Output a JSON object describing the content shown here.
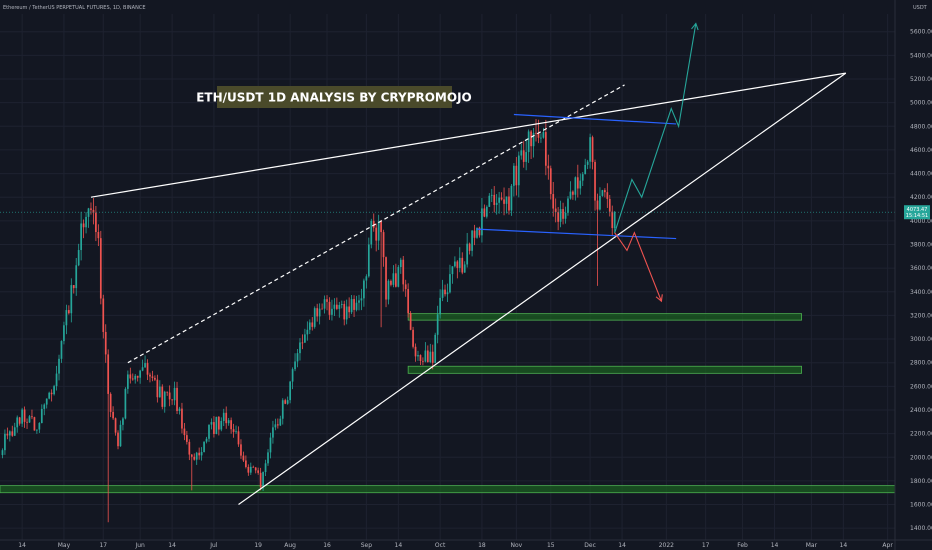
{
  "header": {
    "symbol_line": "Ethereum / TetherUS PERPETUAL FUTURES, 1D, BINANCE",
    "currency": "USDT"
  },
  "banner": {
    "title": "ETH/USDT 1D ANALYSIS BY CRYPROMOJO"
  },
  "price_tag": {
    "value": "4073.47",
    "countdown": "15:14:51"
  },
  "colors": {
    "background": "#131722",
    "grid": "#1e2230",
    "candle_up": "#26a69a",
    "candle_down": "#ef5350",
    "trendline": "#ffffff",
    "channel": "#2962ff",
    "zone_fill": "#1b5e20",
    "zone_border": "#4caf50",
    "projection_up": "#26a69a",
    "projection_down": "#ef5350",
    "banner_bg": "#4a4a2a",
    "price_tag_bg": "#26a69a"
  },
  "chart_data": {
    "type": "candlestick",
    "title": "ETH/USDT 1D ANALYSIS BY CRYPROMOJO",
    "xlabel": "",
    "ylabel": "",
    "grid": true,
    "ylim": [
      1300,
      5750
    ],
    "x_range": [
      "2021-04-05",
      "2022-04-04"
    ],
    "y_ticks": [
      1400,
      1600,
      1800,
      2000,
      2200,
      2400,
      2600,
      2800,
      3000,
      3200,
      3400,
      3600,
      3800,
      4000,
      4200,
      4400,
      4600,
      4800,
      5000,
      5200,
      5400,
      5600
    ],
    "x_ticks": [
      {
        "date": "2021-04-14",
        "label": "14"
      },
      {
        "date": "2021-05-01",
        "label": "May"
      },
      {
        "date": "2021-05-17",
        "label": "17"
      },
      {
        "date": "2021-06-01",
        "label": "Jun"
      },
      {
        "date": "2021-06-14",
        "label": "14"
      },
      {
        "date": "2021-07-01",
        "label": "Jul"
      },
      {
        "date": "2021-07-19",
        "label": "19"
      },
      {
        "date": "2021-08-01",
        "label": "Aug"
      },
      {
        "date": "2021-08-16",
        "label": "16"
      },
      {
        "date": "2021-09-01",
        "label": "Sep"
      },
      {
        "date": "2021-09-14",
        "label": "14"
      },
      {
        "date": "2021-10-01",
        "label": "Oct"
      },
      {
        "date": "2021-10-18",
        "label": "18"
      },
      {
        "date": "2021-11-01",
        "label": "Nov"
      },
      {
        "date": "2021-11-15",
        "label": "15"
      },
      {
        "date": "2021-12-01",
        "label": "Dec"
      },
      {
        "date": "2021-12-14",
        "label": "14"
      },
      {
        "date": "2022-01-01",
        "label": "2022"
      },
      {
        "date": "2022-01-17",
        "label": "17"
      },
      {
        "date": "2022-02-01",
        "label": "Feb"
      },
      {
        "date": "2022-02-14",
        "label": "14"
      },
      {
        "date": "2022-03-01",
        "label": "Mar"
      },
      {
        "date": "2022-03-14",
        "label": "14"
      },
      {
        "date": "2022-04-01",
        "label": "Apr"
      }
    ],
    "price_anchors": [
      {
        "date": "2021-04-06",
        "close": 2100
      },
      {
        "date": "2021-04-13",
        "close": 2350
      },
      {
        "date": "2021-04-20",
        "close": 2250
      },
      {
        "date": "2021-04-27",
        "close": 2650
      },
      {
        "date": "2021-05-04",
        "close": 3400
      },
      {
        "date": "2021-05-08",
        "close": 3900
      },
      {
        "date": "2021-05-11",
        "close": 4180
      },
      {
        "date": "2021-05-15",
        "close": 3750
      },
      {
        "date": "2021-05-19",
        "close": 2500
      },
      {
        "date": "2021-05-23",
        "close": 2100
      },
      {
        "date": "2021-05-27",
        "close": 2700
      },
      {
        "date": "2021-06-03",
        "close": 2750
      },
      {
        "date": "2021-06-10",
        "close": 2500
      },
      {
        "date": "2021-06-15",
        "close": 2550
      },
      {
        "date": "2021-06-22",
        "close": 1950
      },
      {
        "date": "2021-06-30",
        "close": 2250
      },
      {
        "date": "2021-07-07",
        "close": 2350
      },
      {
        "date": "2021-07-14",
        "close": 1950
      },
      {
        "date": "2021-07-20",
        "close": 1800
      },
      {
        "date": "2021-07-25",
        "close": 2200
      },
      {
        "date": "2021-08-01",
        "close": 2600
      },
      {
        "date": "2021-08-08",
        "close": 3100
      },
      {
        "date": "2021-08-15",
        "close": 3300
      },
      {
        "date": "2021-08-22",
        "close": 3250
      },
      {
        "date": "2021-08-29",
        "close": 3250
      },
      {
        "date": "2021-09-03",
        "close": 3900
      },
      {
        "date": "2021-09-07",
        "close": 3900
      },
      {
        "date": "2021-09-09",
        "close": 3400
      },
      {
        "date": "2021-09-15",
        "close": 3600
      },
      {
        "date": "2021-09-21",
        "close": 2900
      },
      {
        "date": "2021-09-28",
        "close": 2850
      },
      {
        "date": "2021-10-02",
        "close": 3400
      },
      {
        "date": "2021-10-08",
        "close": 3600
      },
      {
        "date": "2021-10-15",
        "close": 3850
      },
      {
        "date": "2021-10-20",
        "close": 4150
      },
      {
        "date": "2021-10-27",
        "close": 4050
      },
      {
        "date": "2021-11-02",
        "close": 4500
      },
      {
        "date": "2021-11-08",
        "close": 4750
      },
      {
        "date": "2021-11-12",
        "close": 4650
      },
      {
        "date": "2021-11-18",
        "close": 4000
      },
      {
        "date": "2021-11-24",
        "close": 4350
      },
      {
        "date": "2021-11-29",
        "close": 4450
      },
      {
        "date": "2021-12-01",
        "close": 4600
      },
      {
        "date": "2021-12-04",
        "close": 4100
      },
      {
        "date": "2021-12-07",
        "close": 4300
      },
      {
        "date": "2021-12-10",
        "close": 3950
      },
      {
        "date": "2021-12-11",
        "close": 4073
      }
    ],
    "annotations": {
      "trendlines": [
        {
          "name": "rising-resistance",
          "from": {
            "date": "2021-05-12",
            "price": 4200
          },
          "to": {
            "date": "2022-03-15",
            "price": 5250
          },
          "style": "solid"
        },
        {
          "name": "rising-support",
          "from": {
            "date": "2021-07-11",
            "price": 1600
          },
          "to": {
            "date": "2022-03-15",
            "price": 5250
          },
          "style": "solid"
        },
        {
          "name": "dashed-channel-top",
          "from": {
            "date": "2021-05-27",
            "price": 2800
          },
          "to": {
            "date": "2021-12-15",
            "price": 5150
          },
          "style": "dashed"
        }
      ],
      "channel_lines": [
        {
          "name": "range-top",
          "from": {
            "date": "2021-10-31",
            "price": 4900
          },
          "to": {
            "date": "2022-01-05",
            "price": 4820
          }
        },
        {
          "name": "range-bottom",
          "from": {
            "date": "2021-10-16",
            "price": 3930
          },
          "to": {
            "date": "2022-01-05",
            "price": 3850
          }
        }
      ],
      "zones": [
        {
          "name": "support-zone-1",
          "from": "2021-09-18",
          "to": "2022-02-25",
          "low": 3160,
          "high": 3215
        },
        {
          "name": "support-zone-2",
          "from": "2021-09-18",
          "to": "2022-02-25",
          "low": 2710,
          "high": 2770
        },
        {
          "name": "support-zone-3",
          "from": "2021-04-05",
          "to": "2022-04-04",
          "low": 1700,
          "high": 1760
        }
      ],
      "projections": [
        {
          "name": "bullish-path",
          "points": [
            {
              "date": "2021-12-11",
              "price": 3900
            },
            {
              "date": "2021-12-18",
              "price": 4350
            },
            {
              "date": "2021-12-22",
              "price": 4200
            },
            {
              "date": "2022-01-03",
              "price": 4950
            },
            {
              "date": "2022-01-06",
              "price": 4800
            },
            {
              "date": "2022-01-13",
              "price": 5670
            }
          ]
        },
        {
          "name": "bearish-path",
          "points": [
            {
              "date": "2021-12-11",
              "price": 3900
            },
            {
              "date": "2021-12-16",
              "price": 3750
            },
            {
              "date": "2021-12-19",
              "price": 3900
            },
            {
              "date": "2021-12-30",
              "price": 3320
            }
          ]
        }
      ]
    }
  }
}
